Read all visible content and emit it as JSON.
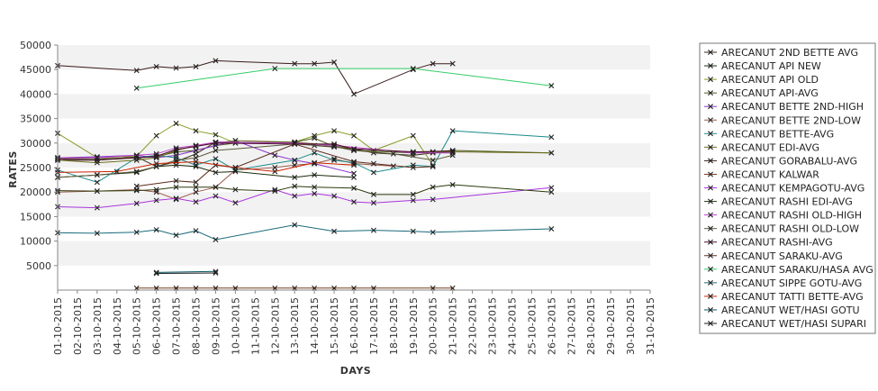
{
  "chart_data": {
    "type": "line",
    "xlabel": "DAYS",
    "ylabel": "RATES",
    "ylim": [
      0,
      50000
    ],
    "yticks": [
      5000,
      10000,
      15000,
      20000,
      25000,
      30000,
      35000,
      40000,
      45000,
      50000
    ],
    "grid": "alternating horizontal bands",
    "legend_position": "right",
    "categories": [
      "01-10-2015",
      "02-10-2015",
      "03-10-2015",
      "04-10-2015",
      "05-10-2015",
      "06-10-2015",
      "07-10-2015",
      "08-10-2015",
      "09-10-2015",
      "10-10-2015",
      "11-10-2015",
      "12-10-2015",
      "13-10-2015",
      "14-10-2015",
      "15-10-2015",
      "16-10-2015",
      "17-10-2015",
      "18-10-2015",
      "19-10-2015",
      "20-10-2015",
      "21-10-2015",
      "22-10-2015",
      "23-10-2015",
      "24-10-2015",
      "25-10-2015",
      "26-10-2015",
      "27-10-2015",
      "28-10-2015",
      "29-10-2015",
      "30-10-2015",
      "31-10-2015"
    ],
    "series": [
      {
        "name": "ARECANUT 2ND BETTE AVG",
        "color": "#3a2a1a",
        "points": [
          [
            0,
            26500
          ],
          [
            2,
            26500
          ],
          [
            4,
            27200
          ],
          [
            5,
            25200
          ],
          [
            6,
            26200
          ],
          [
            7,
            27800
          ],
          [
            8,
            30200
          ],
          [
            12,
            30000
          ],
          [
            13,
            29500
          ],
          [
            14,
            29200
          ],
          [
            15,
            28800
          ],
          [
            16,
            28000
          ],
          [
            18,
            27500
          ],
          [
            19,
            28000
          ],
          [
            20,
            28200
          ]
        ]
      },
      {
        "name": "ARECANUT API NEW",
        "color": "#1a2a0a",
        "points": [
          [
            0,
            23000
          ],
          [
            2,
            23500
          ],
          [
            4,
            24000
          ],
          [
            5,
            25200
          ],
          [
            6,
            25500
          ],
          [
            7,
            25200
          ],
          [
            8,
            24000
          ],
          [
            9,
            24200
          ],
          [
            12,
            23000
          ],
          [
            13,
            23500
          ],
          [
            15,
            23000
          ]
        ]
      },
      {
        "name": "ARECANUT API OLD",
        "color": "#8a9a2a",
        "points": [
          [
            0,
            32000
          ],
          [
            2,
            27000
          ],
          [
            4,
            27300
          ],
          [
            5,
            31500
          ],
          [
            6,
            34000
          ],
          [
            7,
            32500
          ],
          [
            8,
            31700
          ],
          [
            9,
            30000
          ],
          [
            12,
            30200
          ],
          [
            13,
            31500
          ],
          [
            14,
            32500
          ],
          [
            15,
            31500
          ],
          [
            16,
            28500
          ],
          [
            18,
            31500
          ],
          [
            19,
            25500
          ]
        ]
      },
      {
        "name": "ARECANUT API-AVG",
        "color": "#4a5a1a",
        "points": [
          [
            0,
            27000
          ],
          [
            2,
            26800
          ],
          [
            4,
            27000
          ],
          [
            5,
            27200
          ],
          [
            6,
            28200
          ],
          [
            7,
            28500
          ],
          [
            8,
            29500
          ],
          [
            9,
            30000
          ],
          [
            12,
            30200
          ],
          [
            13,
            31000
          ],
          [
            14,
            29300
          ],
          [
            15,
            28500
          ],
          [
            18,
            28000
          ],
          [
            19,
            28200
          ],
          [
            20,
            28500
          ],
          [
            25,
            28000
          ]
        ]
      },
      {
        "name": "ARECANUT BETTE 2ND-HIGH",
        "color": "#8833cc",
        "points": [
          [
            0,
            27000
          ],
          [
            2,
            27200
          ],
          [
            4,
            27500
          ],
          [
            5,
            27000
          ],
          [
            6,
            27500
          ],
          [
            7,
            28500
          ],
          [
            8,
            29500
          ],
          [
            9,
            30500
          ],
          [
            11,
            27500
          ],
          [
            12,
            26500
          ],
          [
            13,
            25800
          ],
          [
            15,
            23800
          ]
        ]
      },
      {
        "name": "ARECANUT BETTE 2ND-LOW",
        "color": "#9a5a4a",
        "points": [
          [
            0,
            20000
          ],
          [
            2,
            20200
          ],
          [
            4,
            20500
          ],
          [
            5,
            20000
          ],
          [
            6,
            18500
          ],
          [
            7,
            20000
          ],
          [
            8,
            21000
          ],
          [
            9,
            24500
          ],
          [
            11,
            25000
          ],
          [
            12,
            25500
          ],
          [
            13,
            25800
          ],
          [
            14,
            26800
          ],
          [
            15,
            25800
          ],
          [
            17,
            25300
          ]
        ]
      },
      {
        "name": "ARECANUT BETTE-AVG",
        "color": "#1a8a8a",
        "points": [
          [
            0,
            24500
          ],
          [
            2,
            22000
          ],
          [
            4,
            27000
          ],
          [
            5,
            27500
          ],
          [
            6,
            27000
          ],
          [
            7,
            25500
          ],
          [
            8,
            26800
          ],
          [
            9,
            24500
          ],
          [
            12,
            26500
          ],
          [
            13,
            28000
          ],
          [
            14,
            26500
          ],
          [
            15,
            26000
          ],
          [
            16,
            24000
          ],
          [
            18,
            25500
          ],
          [
            19,
            25200
          ],
          [
            20,
            32500
          ],
          [
            25,
            31200
          ]
        ]
      },
      {
        "name": "ARECANUT EDI-AVG",
        "color": "#6a6a1a",
        "points": [
          [
            0,
            26500
          ],
          [
            2,
            26000
          ],
          [
            4,
            26500
          ],
          [
            5,
            27000
          ],
          [
            6,
            28500
          ],
          [
            7,
            29500
          ],
          [
            8,
            30000
          ],
          [
            9,
            30500
          ],
          [
            12,
            30200
          ],
          [
            14,
            29500
          ],
          [
            15,
            28800
          ],
          [
            18,
            28200
          ],
          [
            19,
            28200
          ],
          [
            20,
            28200
          ],
          [
            25,
            28000
          ]
        ]
      },
      {
        "name": "ARECANUT GORABALU-AVG",
        "color": "#3a1a1a",
        "points": [
          [
            0,
            45800
          ],
          [
            4,
            44800
          ],
          [
            5,
            45600
          ],
          [
            6,
            45300
          ],
          [
            7,
            45600
          ],
          [
            8,
            46800
          ],
          [
            12,
            46200
          ],
          [
            13,
            46200
          ],
          [
            14,
            46500
          ],
          [
            15,
            40000
          ],
          [
            18,
            45000
          ],
          [
            19,
            46200
          ],
          [
            20,
            46200
          ]
        ]
      },
      {
        "name": "ARECANUT KALWAR",
        "color": "#7a3a1a",
        "points": [
          [
            4,
            400
          ],
          [
            5,
            400
          ],
          [
            6,
            400
          ],
          [
            7,
            400
          ],
          [
            8,
            400
          ],
          [
            9,
            400
          ],
          [
            11,
            400
          ],
          [
            12,
            400
          ],
          [
            13,
            400
          ],
          [
            14,
            400
          ],
          [
            15,
            400
          ],
          [
            16,
            400
          ],
          [
            19,
            400
          ],
          [
            20,
            400
          ]
        ]
      },
      {
        "name": "ARECANUT KEMPAGOTU-AVG",
        "color": "#aa33dd",
        "points": [
          [
            0,
            17000
          ],
          [
            2,
            16800
          ],
          [
            4,
            17700
          ],
          [
            5,
            18300
          ],
          [
            6,
            18700
          ],
          [
            7,
            18000
          ],
          [
            8,
            19200
          ],
          [
            9,
            17800
          ],
          [
            11,
            20500
          ],
          [
            12,
            19200
          ],
          [
            13,
            19700
          ],
          [
            14,
            19200
          ],
          [
            15,
            18000
          ],
          [
            16,
            17800
          ],
          [
            18,
            18300
          ],
          [
            19,
            18500
          ],
          [
            25,
            20900
          ]
        ]
      },
      {
        "name": "ARECANUT RASHI EDI-AVG",
        "color": "#2a3a0a",
        "points": [
          [
            0,
            20300
          ],
          [
            2,
            20200
          ],
          [
            4,
            20300
          ],
          [
            5,
            20500
          ],
          [
            6,
            21000
          ],
          [
            7,
            21000
          ],
          [
            8,
            21000
          ],
          [
            9,
            20500
          ],
          [
            11,
            20200
          ],
          [
            12,
            21200
          ],
          [
            13,
            21000
          ],
          [
            15,
            20800
          ],
          [
            16,
            19500
          ],
          [
            18,
            19500
          ],
          [
            19,
            21000
          ],
          [
            20,
            21500
          ],
          [
            25,
            20000
          ]
        ]
      },
      {
        "name": "ARECANUT RASHI OLD-HIGH",
        "color": "#bb44cc",
        "points": [
          [
            0,
            27000
          ],
          [
            2,
            27000
          ],
          [
            4,
            27500
          ],
          [
            5,
            27800
          ],
          [
            6,
            29000
          ],
          [
            7,
            29500
          ],
          [
            8,
            30200
          ],
          [
            12,
            30000
          ],
          [
            14,
            29500
          ],
          [
            18,
            28000
          ],
          [
            20,
            28000
          ]
        ]
      },
      {
        "name": "ARECANUT RASHI OLD-LOW",
        "color": "#5a5a3a",
        "points": [
          [
            0,
            23000
          ],
          [
            2,
            23500
          ],
          [
            4,
            24200
          ],
          [
            5,
            25200
          ],
          [
            6,
            26500
          ],
          [
            7,
            27000
          ],
          [
            8,
            28500
          ],
          [
            12,
            29800
          ],
          [
            14,
            29300
          ],
          [
            15,
            28500
          ],
          [
            17,
            27800
          ],
          [
            19,
            26500
          ],
          [
            20,
            27500
          ]
        ]
      },
      {
        "name": "ARECANUT RASHI-AVG",
        "color": "#4a0a2a",
        "points": [
          [
            0,
            26800
          ],
          [
            2,
            26500
          ],
          [
            4,
            27000
          ],
          [
            5,
            27300
          ],
          [
            6,
            28700
          ],
          [
            7,
            29300
          ],
          [
            8,
            30000
          ],
          [
            12,
            29800
          ],
          [
            14,
            29800
          ],
          [
            15,
            28800
          ],
          [
            18,
            28200
          ],
          [
            20,
            28400
          ]
        ]
      },
      {
        "name": "ARECANUT SARAKU-AVG",
        "color": "#5a2a1a",
        "points": [
          [
            4,
            21200
          ],
          [
            6,
            22300
          ],
          [
            7,
            22000
          ],
          [
            8,
            25500
          ],
          [
            9,
            25000
          ],
          [
            12,
            29800
          ],
          [
            15,
            26200
          ],
          [
            16,
            25800
          ],
          [
            18,
            25000
          ],
          [
            19,
            25200
          ]
        ]
      },
      {
        "name": "ARECANUT SARAKU/HASA AVG",
        "color": "#33cc66",
        "points": [
          [
            4,
            41200
          ],
          [
            11,
            45200
          ],
          [
            18,
            45200
          ],
          [
            25,
            41700
          ]
        ]
      },
      {
        "name": "ARECANUT SIPPE GOTU-AVG",
        "color": "#1a6a7a",
        "points": [
          [
            0,
            11700
          ],
          [
            2,
            11600
          ],
          [
            4,
            11800
          ],
          [
            5,
            12300
          ],
          [
            6,
            11200
          ],
          [
            7,
            12100
          ],
          [
            8,
            10300
          ],
          [
            12,
            13300
          ],
          [
            14,
            12000
          ],
          [
            16,
            12200
          ],
          [
            18,
            12000
          ],
          [
            19,
            11800
          ],
          [
            25,
            12500
          ]
        ]
      },
      {
        "name": "ARECANUT TATTI BETTE-AVG",
        "color": "#cc2200",
        "points": [
          [
            0,
            24000
          ],
          [
            3,
            24200
          ],
          [
            5,
            25800
          ],
          [
            7,
            26200
          ],
          [
            9,
            25000
          ],
          [
            11,
            24200
          ],
          [
            13,
            26000
          ],
          [
            15,
            25500
          ]
        ]
      },
      {
        "name": "ARECANUT WET/HASI GOTU",
        "color": "#0a5a6a",
        "points": [
          [
            5,
            3600
          ],
          [
            8,
            3800
          ]
        ]
      },
      {
        "name": "ARECANUT WET/HASI SUPARI",
        "color": "#1a1a1a",
        "points": [
          [
            5,
            3400
          ],
          [
            8,
            3500
          ]
        ]
      }
    ]
  }
}
